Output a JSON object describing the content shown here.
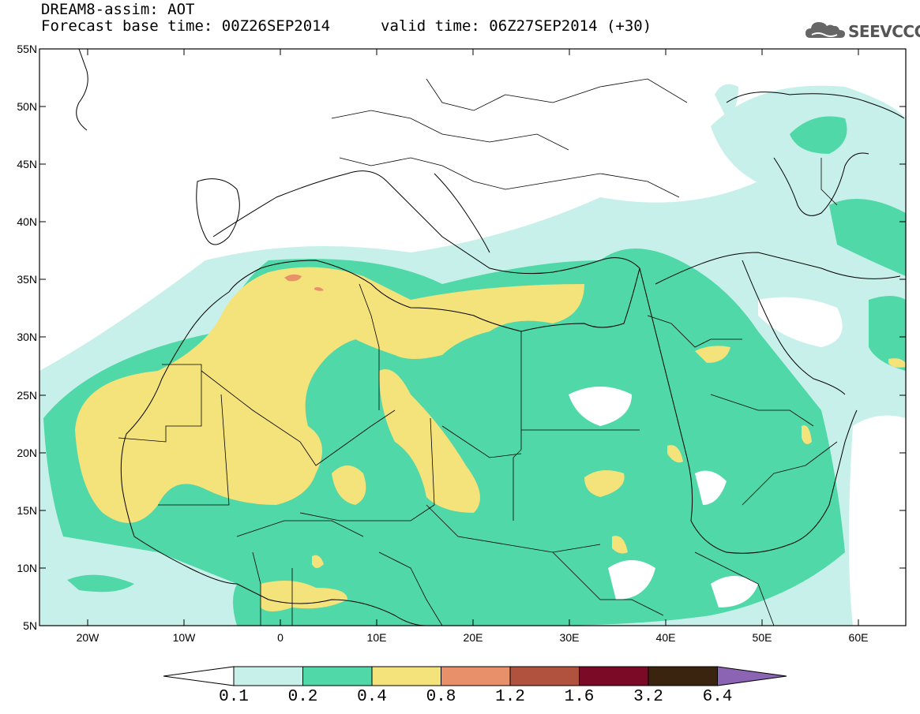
{
  "header": {
    "model_line": "DREAM8-assim: AOT",
    "base_time": "Forecast base time: 00Z26SEP2014",
    "valid_time": "valid time: 06Z27SEP2014 (+30)",
    "logo_text": "SEEVCCC"
  },
  "map": {
    "lat_labels": [
      "55N",
      "50N",
      "45N",
      "40N",
      "35N",
      "30N",
      "25N",
      "20N",
      "15N",
      "10N",
      "5N"
    ],
    "lon_labels": [
      "20W",
      "10W",
      "0",
      "10E",
      "20E",
      "30E",
      "40E",
      "50E",
      "60E"
    ],
    "extent": {
      "lon_min": -25,
      "lon_max": 65,
      "lat_min": 5,
      "lat_max": 55
    }
  },
  "colorbar": {
    "labels": [
      "0.1",
      "0.2",
      "0.4",
      "0.8",
      "1.2",
      "1.6",
      "3.2",
      "6.4"
    ],
    "colors": [
      "#c8f0ea",
      "#50d8a8",
      "#f4e27a",
      "#e8906a",
      "#b0523e",
      "#7a0a26",
      "#3a2410",
      "#8c64b4"
    ],
    "below_color": "#ffffff"
  }
}
